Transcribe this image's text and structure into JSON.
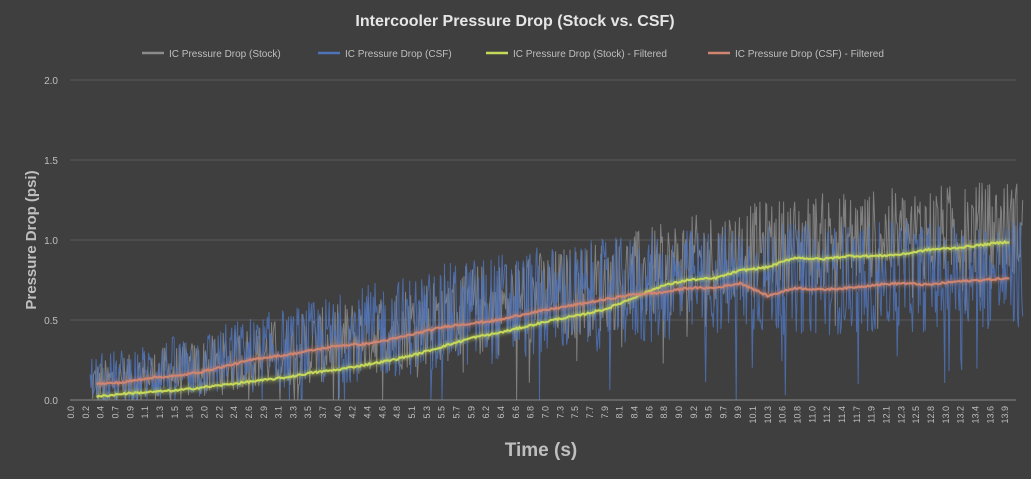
{
  "chart_data": {
    "type": "line",
    "title": "Intercooler Pressure Drop (Stock vs. CSF)",
    "xlabel": "Time (s)",
    "ylabel": "Pressure Drop (psi)",
    "ylim": [
      0,
      2.0
    ],
    "yticks": [
      "0.0",
      "0.5",
      "1.0",
      "1.5",
      "2.0"
    ],
    "grid": true,
    "legend_position": "top",
    "x_tick_labels": [
      "0.0",
      "0.2",
      "0.4",
      "0.7",
      "0.9",
      "1.1",
      "1.3",
      "1.5",
      "1.8",
      "2.0",
      "2.2",
      "2.4",
      "2.6",
      "2.9",
      "3.1",
      "3.3",
      "3.5",
      "3.7",
      "4.0",
      "4.2",
      "4.4",
      "4.6",
      "4.8",
      "5.1",
      "5.3",
      "5.5",
      "5.7",
      "5.9",
      "6.2",
      "6.4",
      "6.6",
      "6.8",
      "7.0",
      "7.3",
      "7.5",
      "7.7",
      "7.9",
      "8.1",
      "8.4",
      "8.6",
      "8.8",
      "9.0",
      "9.2",
      "9.5",
      "9.7",
      "9.9",
      "10.1",
      "10.3",
      "10.6",
      "10.8",
      "11.0",
      "11.2",
      "11.4",
      "11.7",
      "11.9",
      "12.1",
      "12.3",
      "12.5",
      "12.8",
      "13.0",
      "13.2",
      "13.4",
      "13.6",
      "13.9"
    ],
    "filtered_x": [
      0.4,
      0.8,
      1.2,
      1.6,
      2.0,
      2.4,
      2.8,
      3.2,
      3.6,
      4.0,
      4.4,
      4.8,
      5.2,
      5.6,
      6.0,
      6.4,
      6.8,
      7.2,
      7.6,
      8.0,
      8.4,
      8.8,
      9.2,
      9.6,
      10.0,
      10.4,
      10.8,
      11.2,
      11.6,
      12.0,
      12.4,
      12.8,
      13.2,
      13.6,
      14.0
    ],
    "series": [
      {
        "name": "IC Pressure Drop (Stock)",
        "color": "#8c8c8c",
        "kind": "raw",
        "approx_mean": [
          0.1,
          0.12,
          0.15,
          0.17,
          0.2,
          0.24,
          0.27,
          0.3,
          0.33,
          0.36,
          0.4,
          0.44,
          0.48,
          0.52,
          0.55,
          0.58,
          0.62,
          0.65,
          0.68,
          0.72,
          0.76,
          0.8,
          0.85,
          0.88,
          0.92,
          0.95,
          0.98,
          1.0,
          1.0,
          1.02,
          1.03,
          1.05,
          1.05,
          1.07,
          1.08
        ],
        "approx_noise": 0.3
      },
      {
        "name": "IC Pressure Drop (CSF)",
        "color": "#4f73b8",
        "kind": "raw",
        "approx_mean": [
          0.12,
          0.14,
          0.17,
          0.2,
          0.22,
          0.26,
          0.29,
          0.32,
          0.35,
          0.38,
          0.42,
          0.45,
          0.48,
          0.52,
          0.55,
          0.58,
          0.6,
          0.62,
          0.64,
          0.66,
          0.68,
          0.7,
          0.72,
          0.74,
          0.75,
          0.75,
          0.76,
          0.75,
          0.76,
          0.76,
          0.77,
          0.77,
          0.78,
          0.78,
          0.78
        ],
        "approx_noise": 0.35
      },
      {
        "name": "IC Pressure Drop (Stock) - Filtered",
        "color": "#c6d95a",
        "kind": "filtered",
        "values": [
          0.02,
          0.04,
          0.05,
          0.06,
          0.08,
          0.1,
          0.12,
          0.14,
          0.17,
          0.19,
          0.22,
          0.25,
          0.29,
          0.34,
          0.39,
          0.42,
          0.46,
          0.5,
          0.53,
          0.57,
          0.64,
          0.71,
          0.75,
          0.76,
          0.81,
          0.83,
          0.89,
          0.88,
          0.9,
          0.9,
          0.91,
          0.94,
          0.95,
          0.97,
          0.99
        ]
      },
      {
        "name": "IC Pressure Drop (CSF) - Filtered",
        "color": "#d08570",
        "kind": "filtered",
        "values": [
          0.1,
          0.11,
          0.14,
          0.15,
          0.18,
          0.22,
          0.26,
          0.28,
          0.31,
          0.34,
          0.35,
          0.38,
          0.42,
          0.46,
          0.48,
          0.5,
          0.54,
          0.57,
          0.6,
          0.63,
          0.66,
          0.67,
          0.7,
          0.7,
          0.73,
          0.65,
          0.7,
          0.69,
          0.7,
          0.72,
          0.73,
          0.72,
          0.74,
          0.75,
          0.76
        ]
      }
    ]
  }
}
